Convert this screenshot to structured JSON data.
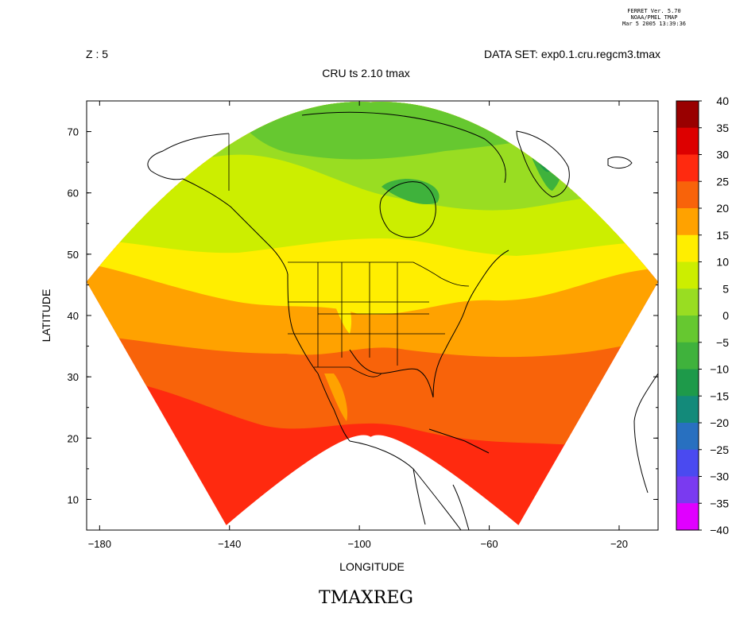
{
  "stamp": [
    "FERRET Ver. 5.70",
    "NOAA/PMEL TMAP",
    "Mar  5 2005 13:39:36"
  ],
  "header": {
    "z_label": "Z : 5",
    "dataset": "DATA SET: exp0.1.cru.regcm3.tmax",
    "subtitle": "CRU ts 2.10 tmax"
  },
  "footer_title": "TMAXREG",
  "chart_data": {
    "type": "heatmap",
    "xlabel": "LONGITUDE",
    "ylabel": "LATITUDE",
    "xlim": [
      -184,
      -8
    ],
    "ylim": [
      5,
      75
    ],
    "xticks": [
      {
        "value": -180,
        "label": "−180"
      },
      {
        "value": -140,
        "label": "−140"
      },
      {
        "value": -100,
        "label": "−100"
      },
      {
        "value": -60,
        "label": "−60"
      },
      {
        "value": -20,
        "label": "−20"
      }
    ],
    "yticks": [
      10,
      20,
      30,
      40,
      50,
      60,
      70
    ],
    "colorbar": [
      {
        "label": "40",
        "color": "#990000"
      },
      {
        "label": "35",
        "color": "#dd0000"
      },
      {
        "label": "30",
        "color": "#ff2a0f"
      },
      {
        "label": "25",
        "color": "#f8630a"
      },
      {
        "label": "20",
        "color": "#ffa200"
      },
      {
        "label": "15",
        "color": "#ffee00"
      },
      {
        "label": "10",
        "color": "#ccee00"
      },
      {
        "label": "5",
        "color": "#99dd22"
      },
      {
        "label": "0",
        "color": "#66c830"
      },
      {
        "label": "−5",
        "color": "#3fb23c"
      },
      {
        "label": "−10",
        "color": "#1e9a4a"
      },
      {
        "label": "−15",
        "color": "#138a7a"
      },
      {
        "label": "−20",
        "color": "#2870c0"
      },
      {
        "label": "−25",
        "color": "#4a4af0"
      },
      {
        "label": "−30",
        "color": "#7a3af0"
      },
      {
        "label": "−35",
        "color": "#a030f0"
      },
      {
        "label": "−40",
        "color": ""
      }
    ],
    "colorbar_bottom_color": "#e000ff",
    "domain": {
      "outer_lat": 52.3,
      "inner_lat": 20.2,
      "center_lon": -96.5,
      "proj_lat": 40.5
    }
  }
}
